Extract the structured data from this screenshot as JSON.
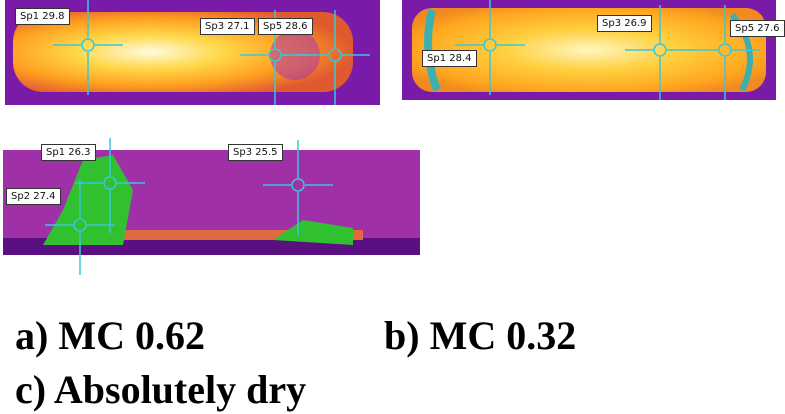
{
  "panels": [
    {
      "spots": [
        {
          "label": "Sp1 29.8"
        },
        {
          "label": "Sp3 27.1"
        },
        {
          "label": "Sp5 28.6"
        }
      ]
    },
    {
      "spots": [
        {
          "label": "Sp3 26.9"
        },
        {
          "label": "Sp5 27.6"
        },
        {
          "label": "Sp1 28.4"
        }
      ]
    },
    {
      "spots": [
        {
          "label": "Sp1 26.3"
        },
        {
          "label": "Sp3 25.5"
        },
        {
          "label": "Sp2 27.4"
        }
      ]
    }
  ],
  "captions": [
    "a) MC 0.62",
    "b) MC 0.32",
    "c) Absolutely dry"
  ]
}
